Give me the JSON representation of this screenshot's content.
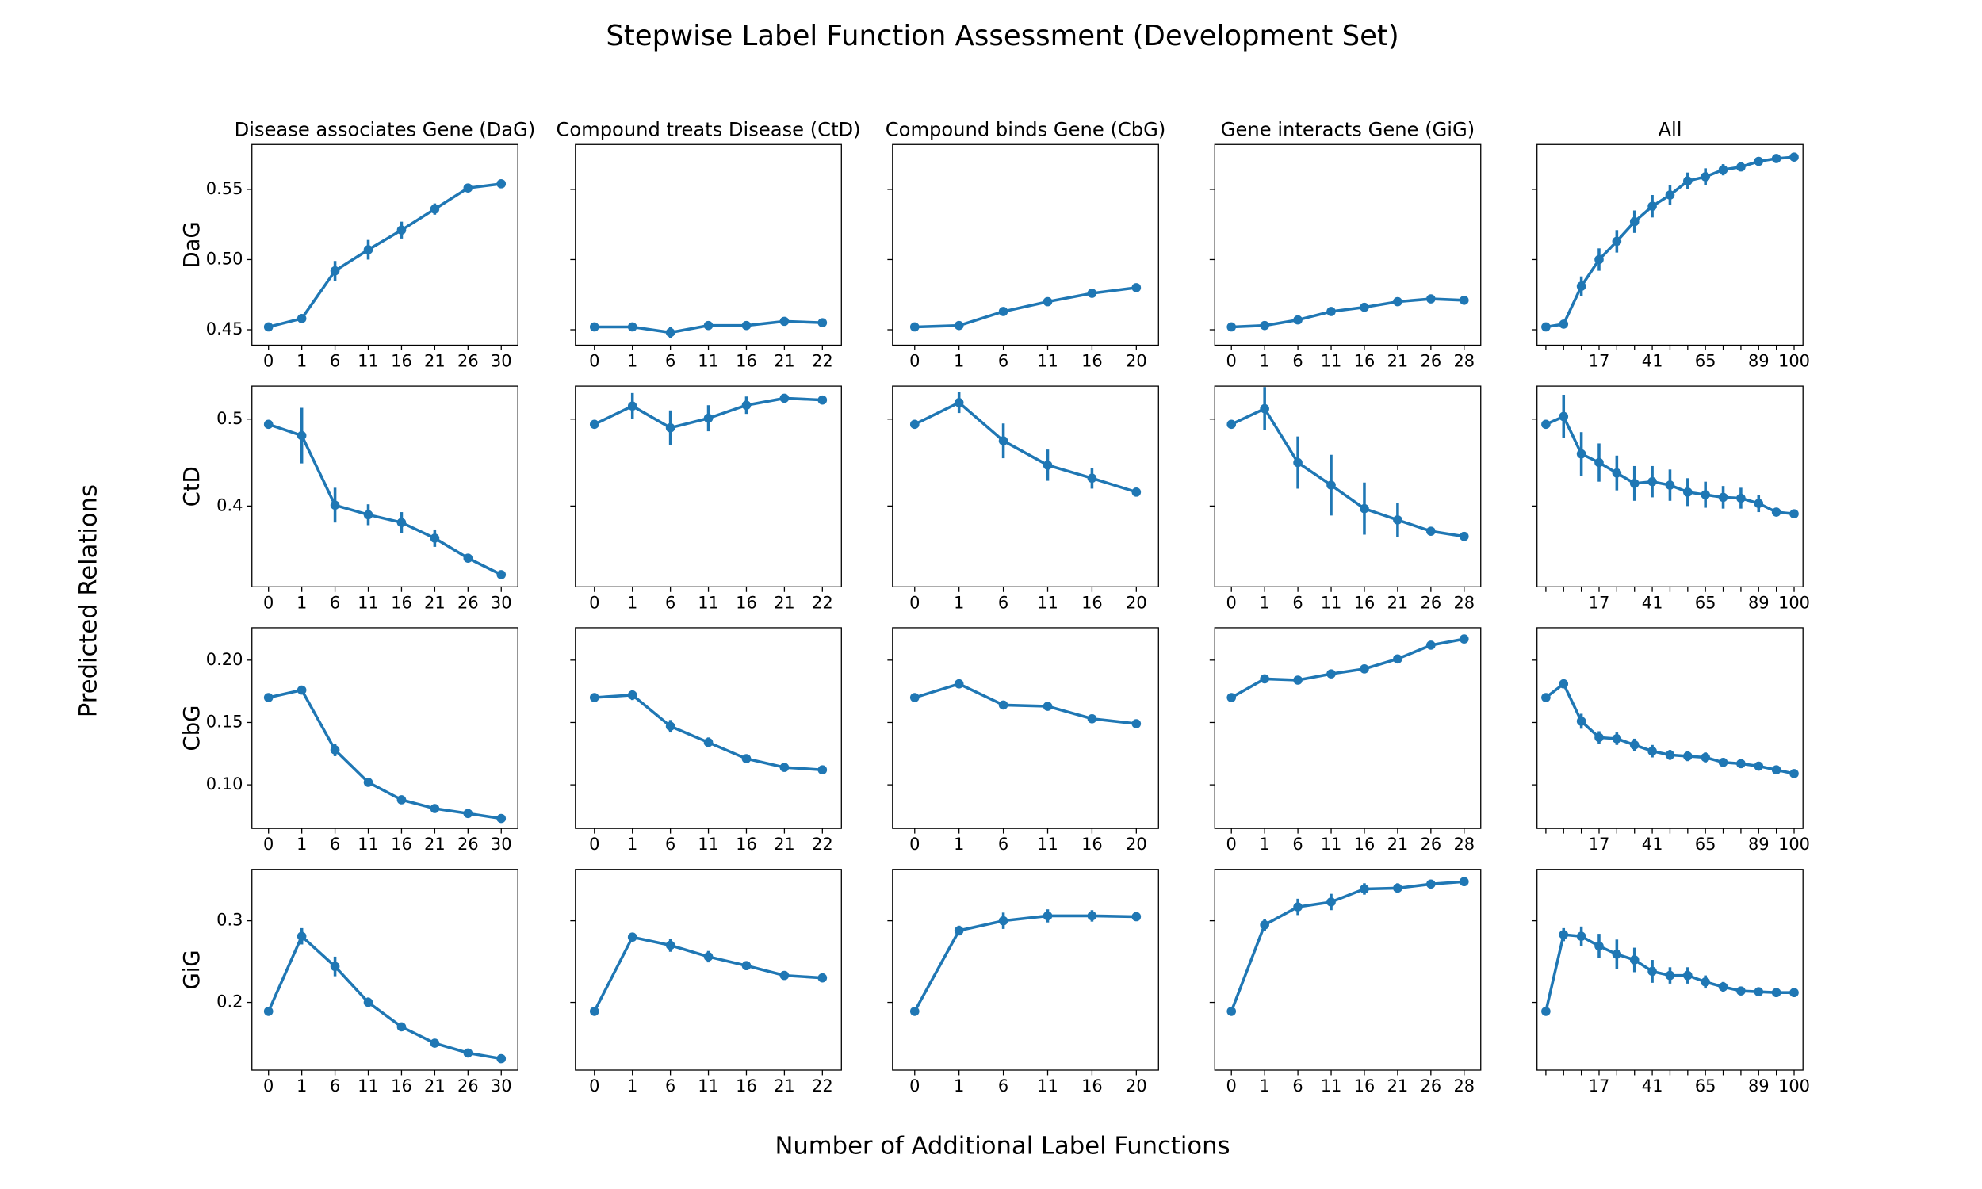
{
  "title": "Stepwise Label Function Assessment (Development Set)",
  "xlabel": "Number of Additional Label Functions",
  "ylabel": "Predicted Relations",
  "chart_data": [
    {
      "type": "line",
      "title": "Disease associates Gene (DaG)",
      "ylabel": "DaG",
      "color": "#1f77b4",
      "categories": [
        "0",
        "1",
        "6",
        "11",
        "16",
        "21",
        "26",
        "30"
      ],
      "values": [
        0.452,
        0.458,
        0.492,
        0.507,
        0.521,
        0.536,
        0.551,
        0.554
      ],
      "errors": [
        0.002,
        0.003,
        0.007,
        0.007,
        0.006,
        0.004,
        0.002,
        0.002
      ],
      "ylim": [
        0.439,
        0.582
      ],
      "yticks": [
        0.45,
        {
          "value": 0.5,
          "label": "0.50"
        },
        0.55
      ]
    },
    {
      "type": "line",
      "title": "Compound treats Disease (CtD)",
      "color": "#1f77b4",
      "categories": [
        "0",
        "1",
        "6",
        "11",
        "16",
        "21",
        "22"
      ],
      "values": [
        0.452,
        0.452,
        0.448,
        0.453,
        0.453,
        0.456,
        0.455
      ],
      "errors": [
        0.002,
        0.002,
        0.004,
        0.003,
        0.003,
        0.002,
        0.002
      ],
      "ylim": [
        0.439,
        0.582
      ]
    },
    {
      "type": "line",
      "title": "Compound binds Gene (CbG)",
      "color": "#1f77b4",
      "categories": [
        "0",
        "1",
        "6",
        "11",
        "16",
        "20"
      ],
      "values": [
        0.452,
        0.453,
        0.463,
        0.47,
        0.476,
        0.48
      ],
      "errors": [
        0.002,
        0.002,
        0.002,
        0.002,
        0.002,
        0.002
      ],
      "ylim": [
        0.439,
        0.582
      ]
    },
    {
      "type": "line",
      "title": "Gene interacts Gene (GiG)",
      "color": "#1f77b4",
      "categories": [
        "0",
        "1",
        "6",
        "11",
        "16",
        "21",
        "26",
        "28"
      ],
      "values": [
        0.452,
        0.453,
        0.457,
        0.463,
        0.466,
        0.47,
        0.472,
        0.471
      ],
      "errors": [
        0.002,
        0.002,
        0.002,
        0.002,
        0.002,
        0.002,
        0.002,
        0.002
      ],
      "ylim": [
        0.439,
        0.582
      ]
    },
    {
      "type": "line",
      "title": "All",
      "color": "#1f77b4",
      "categories": [
        null,
        null,
        null,
        "17",
        null,
        null,
        "41",
        null,
        null,
        "65",
        null,
        null,
        "89",
        null,
        "100"
      ],
      "values": [
        0.452,
        0.454,
        0.481,
        0.5,
        0.513,
        0.527,
        0.538,
        0.546,
        0.556,
        0.559,
        0.564,
        0.566,
        0.57,
        0.572,
        0.573
      ],
      "errors": [
        0.002,
        0.003,
        0.007,
        0.008,
        0.008,
        0.008,
        0.008,
        0.007,
        0.006,
        0.006,
        0.004,
        0.003,
        0.002,
        0.002,
        0.002
      ],
      "ylim": [
        0.439,
        0.582
      ]
    },
    {
      "type": "line",
      "ylabel": "CtD",
      "color": "#1f77b4",
      "categories": [
        "0",
        "1",
        "6",
        "11",
        "16",
        "21",
        "26",
        "30"
      ],
      "values": [
        0.494,
        0.481,
        0.401,
        0.39,
        0.381,
        0.363,
        0.34,
        0.321
      ],
      "errors": [
        0.003,
        0.032,
        0.02,
        0.012,
        0.012,
        0.01,
        0.004,
        0.003
      ],
      "ylim": [
        0.307,
        0.538
      ],
      "yticks": [
        0.4,
        0.5
      ]
    },
    {
      "type": "line",
      "color": "#1f77b4",
      "categories": [
        "0",
        "1",
        "6",
        "11",
        "16",
        "21",
        "22"
      ],
      "values": [
        0.494,
        0.515,
        0.49,
        0.501,
        0.516,
        0.524,
        0.522
      ],
      "errors": [
        0.003,
        0.015,
        0.02,
        0.015,
        0.01,
        0.004,
        0.004
      ],
      "ylim": [
        0.307,
        0.538
      ]
    },
    {
      "type": "line",
      "color": "#1f77b4",
      "categories": [
        "0",
        "1",
        "6",
        "11",
        "16",
        "20"
      ],
      "values": [
        0.494,
        0.519,
        0.475,
        0.447,
        0.432,
        0.416
      ],
      "errors": [
        0.003,
        0.012,
        0.02,
        0.018,
        0.012,
        0.004
      ],
      "ylim": [
        0.307,
        0.538
      ]
    },
    {
      "type": "line",
      "color": "#1f77b4",
      "categories": [
        "0",
        "1",
        "6",
        "11",
        "16",
        "21",
        "26",
        "28"
      ],
      "values": [
        0.494,
        0.512,
        0.45,
        0.424,
        0.397,
        0.384,
        0.371,
        0.365
      ],
      "errors": [
        0.003,
        0.025,
        0.03,
        0.035,
        0.03,
        0.02,
        0.004,
        0.003
      ],
      "ylim": [
        0.307,
        0.538
      ]
    },
    {
      "type": "line",
      "color": "#1f77b4",
      "categories": [
        null,
        null,
        null,
        "17",
        null,
        null,
        "41",
        null,
        null,
        "65",
        null,
        null,
        "89",
        null,
        "100"
      ],
      "values": [
        0.494,
        0.503,
        0.46,
        0.45,
        0.438,
        0.426,
        0.428,
        0.424,
        0.416,
        0.413,
        0.41,
        0.409,
        0.403,
        0.393,
        0.391
      ],
      "errors": [
        0.003,
        0.025,
        0.025,
        0.022,
        0.02,
        0.02,
        0.018,
        0.018,
        0.016,
        0.015,
        0.013,
        0.012,
        0.01,
        0.004,
        0.004
      ],
      "ylim": [
        0.307,
        0.538
      ]
    },
    {
      "type": "line",
      "ylabel": "CbG",
      "color": "#1f77b4",
      "categories": [
        "0",
        "1",
        "6",
        "11",
        "16",
        "21",
        "26",
        "30"
      ],
      "values": [
        0.17,
        0.176,
        0.128,
        0.102,
        0.088,
        0.081,
        0.077,
        0.073
      ],
      "errors": [
        0.002,
        0.002,
        0.005,
        0.003,
        0.002,
        0.002,
        0.002,
        0.002
      ],
      "ylim": [
        0.065,
        0.226
      ],
      "yticks": [
        {
          "value": 0.1,
          "label": "0.10"
        },
        0.15,
        {
          "value": 0.2,
          "label": "0.20"
        }
      ]
    },
    {
      "type": "line",
      "color": "#1f77b4",
      "categories": [
        "0",
        "1",
        "6",
        "11",
        "16",
        "21",
        "22"
      ],
      "values": [
        0.17,
        0.172,
        0.147,
        0.134,
        0.121,
        0.114,
        0.112
      ],
      "errors": [
        0.002,
        0.004,
        0.005,
        0.004,
        0.002,
        0.002,
        0.002
      ],
      "ylim": [
        0.065,
        0.226
      ]
    },
    {
      "type": "line",
      "color": "#1f77b4",
      "categories": [
        "0",
        "1",
        "6",
        "11",
        "16",
        "20"
      ],
      "values": [
        0.17,
        0.181,
        0.164,
        0.163,
        0.153,
        0.149
      ],
      "errors": [
        0.002,
        0.002,
        0.003,
        0.003,
        0.002,
        0.002
      ],
      "ylim": [
        0.065,
        0.226
      ]
    },
    {
      "type": "line",
      "color": "#1f77b4",
      "categories": [
        "0",
        "1",
        "6",
        "11",
        "16",
        "21",
        "26",
        "28"
      ],
      "values": [
        0.17,
        0.185,
        0.184,
        0.189,
        0.193,
        0.201,
        0.212,
        0.217
      ],
      "errors": [
        0.002,
        0.002,
        0.002,
        0.002,
        0.002,
        0.002,
        0.002,
        0.002
      ],
      "ylim": [
        0.065,
        0.226
      ]
    },
    {
      "type": "line",
      "color": "#1f77b4",
      "categories": [
        null,
        null,
        null,
        "17",
        null,
        null,
        "41",
        null,
        null,
        "65",
        null,
        null,
        "89",
        null,
        "100"
      ],
      "values": [
        0.17,
        0.181,
        0.151,
        0.138,
        0.137,
        0.132,
        0.127,
        0.124,
        0.123,
        0.122,
        0.118,
        0.117,
        0.115,
        0.112,
        0.109
      ],
      "errors": [
        0.002,
        0.002,
        0.006,
        0.005,
        0.005,
        0.005,
        0.005,
        0.004,
        0.004,
        0.004,
        0.003,
        0.003,
        0.002,
        0.002,
        0.002
      ],
      "ylim": [
        0.065,
        0.226
      ]
    },
    {
      "type": "line",
      "ylabel": "GiG",
      "color": "#1f77b4",
      "categories": [
        "0",
        "1",
        "6",
        "11",
        "16",
        "21",
        "26",
        "30"
      ],
      "values": [
        0.189,
        0.281,
        0.244,
        0.2,
        0.17,
        0.15,
        0.138,
        0.131
      ],
      "errors": [
        0.003,
        0.01,
        0.012,
        0.006,
        0.005,
        0.003,
        0.003,
        0.003
      ],
      "ylim": [
        0.117,
        0.363
      ],
      "yticks": [
        0.2,
        0.3
      ]
    },
    {
      "type": "line",
      "color": "#1f77b4",
      "categories": [
        "0",
        "1",
        "6",
        "11",
        "16",
        "21",
        "22"
      ],
      "values": [
        0.189,
        0.28,
        0.27,
        0.256,
        0.245,
        0.233,
        0.23
      ],
      "errors": [
        0.003,
        0.004,
        0.008,
        0.007,
        0.004,
        0.003,
        0.003
      ],
      "ylim": [
        0.117,
        0.363
      ]
    },
    {
      "type": "line",
      "color": "#1f77b4",
      "categories": [
        "0",
        "1",
        "6",
        "11",
        "16",
        "20"
      ],
      "values": [
        0.189,
        0.288,
        0.3,
        0.306,
        0.306,
        0.305
      ],
      "errors": [
        0.003,
        0.006,
        0.01,
        0.008,
        0.007,
        0.004
      ],
      "ylim": [
        0.117,
        0.363
      ]
    },
    {
      "type": "line",
      "color": "#1f77b4",
      "categories": [
        "0",
        "1",
        "6",
        "11",
        "16",
        "21",
        "26",
        "28"
      ],
      "values": [
        0.189,
        0.295,
        0.317,
        0.323,
        0.339,
        0.34,
        0.345,
        0.348
      ],
      "errors": [
        0.003,
        0.007,
        0.01,
        0.01,
        0.007,
        0.006,
        0.004,
        0.003
      ],
      "ylim": [
        0.117,
        0.363
      ]
    },
    {
      "type": "line",
      "color": "#1f77b4",
      "categories": [
        null,
        null,
        null,
        "17",
        null,
        null,
        "41",
        null,
        null,
        "65",
        null,
        null,
        "89",
        null,
        "100"
      ],
      "values": [
        0.189,
        0.283,
        0.281,
        0.269,
        0.259,
        0.252,
        0.238,
        0.233,
        0.233,
        0.225,
        0.219,
        0.214,
        0.213,
        0.212,
        0.212
      ],
      "errors": [
        0.003,
        0.008,
        0.012,
        0.015,
        0.018,
        0.015,
        0.014,
        0.01,
        0.01,
        0.008,
        0.006,
        0.004,
        0.003,
        0.003,
        0.003
      ],
      "ylim": [
        0.117,
        0.363
      ]
    }
  ]
}
